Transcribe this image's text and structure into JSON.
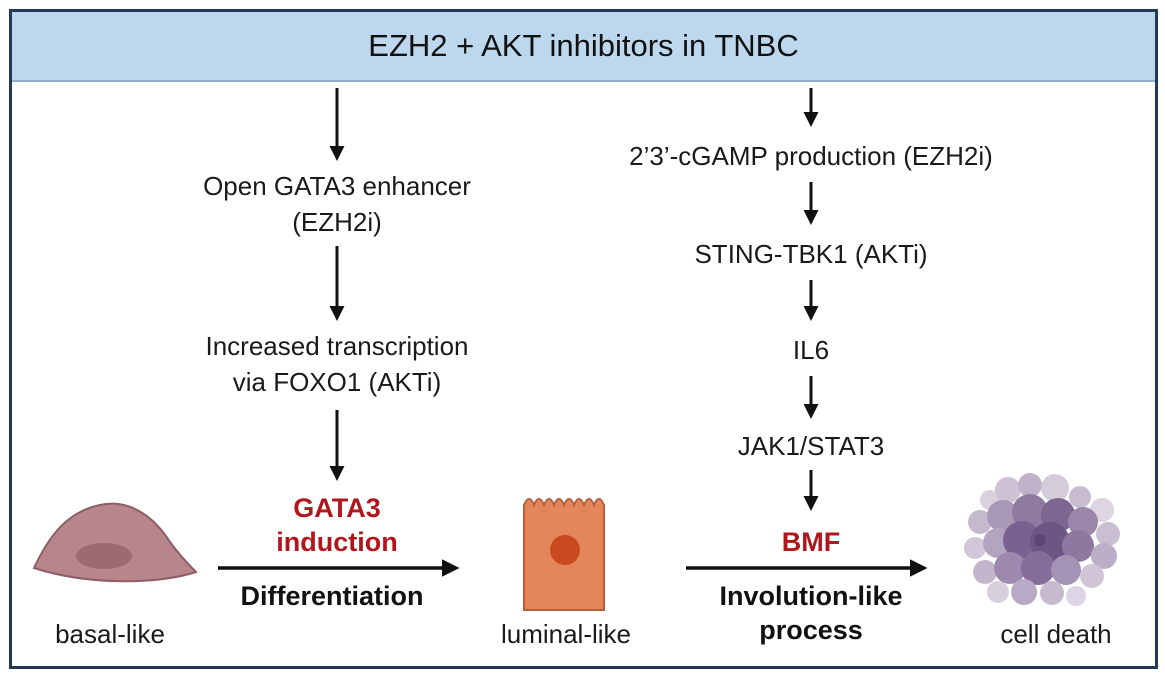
{
  "header": {
    "title": "EZH2 + AKT inhibitors in TNBC"
  },
  "left_path": {
    "step1_line1": "Open GATA3 enhancer",
    "step1_line2": "(EZH2i)",
    "step2_line1": "Increased transcription",
    "step2_line2": "via FOXO1 (AKTi)",
    "outcome_line1": "GATA3",
    "outcome_line2": "induction",
    "process": "Differentiation"
  },
  "right_path": {
    "step1": "2’3’-cGAMP production (EZH2i)",
    "step2": "STING-TBK1 (AKTi)",
    "step3": "IL6",
    "step4": "JAK1/STAT3",
    "outcome": "BMF",
    "process_line1": "Involution-like",
    "process_line2": "process"
  },
  "cells": {
    "basal": "basal-like",
    "luminal": "luminal-like",
    "death": "cell death"
  },
  "colors": {
    "header_bg": "#bdd7ee",
    "border": "#233a57",
    "highlight_red": "#b0161c",
    "basal_cell": "#b9858d",
    "luminal_cell": "#e3875a",
    "luminal_nucleus": "#c94a1f",
    "dead_cell": "#8f7aa0"
  }
}
